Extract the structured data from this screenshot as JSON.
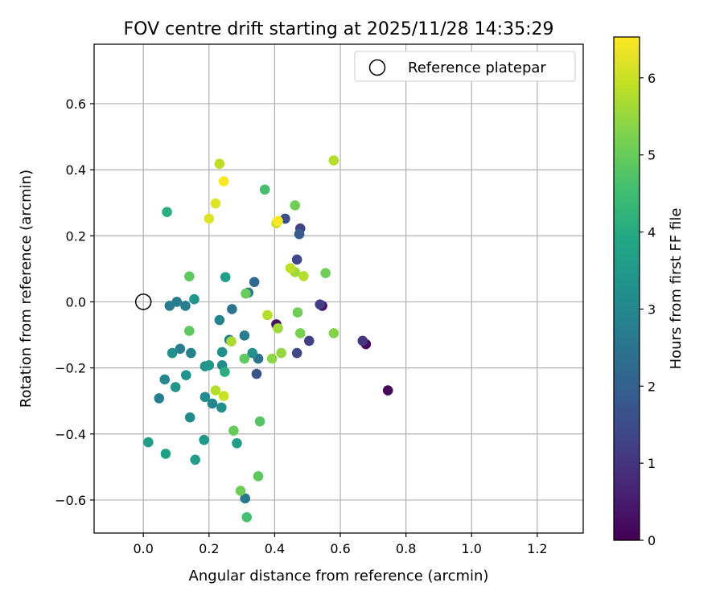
{
  "chart_data": {
    "type": "scatter",
    "title": "FOV centre drift starting at 2025/11/28 14:35:29",
    "xlabel": "Angular distance from reference (arcmin)",
    "ylabel": "Rotation from reference (arcmin)",
    "xlim": [
      -0.15,
      1.34
    ],
    "ylim": [
      -0.7,
      0.78
    ],
    "xticks": [
      0.0,
      0.2,
      0.4,
      0.6,
      0.8,
      1.0,
      1.2
    ],
    "xtick_labels": [
      "0.0",
      "0.2",
      "0.4",
      "0.6",
      "0.8",
      "1.0",
      "1.2"
    ],
    "yticks": [
      -0.6,
      -0.4,
      -0.2,
      0.0,
      0.2,
      0.4,
      0.6
    ],
    "ytick_labels": [
      "−0.6",
      "−0.4",
      "−0.2",
      "0.0",
      "0.2",
      "0.4",
      "0.6"
    ],
    "grid": true,
    "legend": {
      "position": "top-right",
      "label": "Reference platepar"
    },
    "reference_point": {
      "x": 0.0,
      "y": 0.0
    },
    "colorbar": {
      "label": "Hours from first FF file",
      "range": [
        0,
        6.53
      ],
      "ticks": [
        0,
        1,
        2,
        3,
        4,
        5,
        6
      ],
      "tick_labels": [
        "0",
        "1",
        "2",
        "3",
        "4",
        "5",
        "6"
      ],
      "colormap": "viridis"
    },
    "series": [
      {
        "name": "FOV centre drift",
        "points": [
          {
            "x": 0.745,
            "y": -0.268,
            "h": 0.1
          },
          {
            "x": 0.678,
            "y": -0.128,
            "h": 0.2
          },
          {
            "x": 0.545,
            "y": -0.012,
            "h": 0.3
          },
          {
            "x": 0.405,
            "y": -0.068,
            "h": 0.3
          },
          {
            "x": 0.668,
            "y": -0.118,
            "h": 1.0
          },
          {
            "x": 0.538,
            "y": -0.008,
            "h": 1.2
          },
          {
            "x": 0.505,
            "y": -0.118,
            "h": 1.2
          },
          {
            "x": 0.478,
            "y": 0.222,
            "h": 1.3
          },
          {
            "x": 0.468,
            "y": 0.128,
            "h": 1.4
          },
          {
            "x": 0.468,
            "y": -0.155,
            "h": 1.4
          },
          {
            "x": 0.432,
            "y": 0.252,
            "h": 1.6
          },
          {
            "x": 0.345,
            "y": -0.218,
            "h": 1.7
          },
          {
            "x": 0.475,
            "y": 0.205,
            "h": 1.9
          },
          {
            "x": 0.338,
            "y": 0.06,
            "h": 2.2
          },
          {
            "x": 0.35,
            "y": -0.172,
            "h": 2.5
          },
          {
            "x": 0.27,
            "y": -0.022,
            "h": 2.5
          },
          {
            "x": 0.31,
            "y": -0.595,
            "h": 2.6
          },
          {
            "x": 0.32,
            "y": 0.028,
            "h": 2.6
          },
          {
            "x": 0.308,
            "y": -0.102,
            "h": 2.7
          },
          {
            "x": 0.262,
            "y": -0.115,
            "h": 2.7
          },
          {
            "x": 0.102,
            "y": 0.0,
            "h": 2.7
          },
          {
            "x": 0.08,
            "y": -0.012,
            "h": 2.7
          },
          {
            "x": 0.128,
            "y": -0.012,
            "h": 2.8
          },
          {
            "x": 0.232,
            "y": -0.055,
            "h": 2.9
          },
          {
            "x": 0.048,
            "y": -0.292,
            "h": 2.8
          },
          {
            "x": 0.112,
            "y": -0.142,
            "h": 2.8
          },
          {
            "x": 0.145,
            "y": -0.155,
            "h": 2.9
          },
          {
            "x": 0.065,
            "y": -0.235,
            "h": 3.0
          },
          {
            "x": 0.21,
            "y": -0.308,
            "h": 3.0
          },
          {
            "x": 0.188,
            "y": -0.288,
            "h": 3.1
          },
          {
            "x": 0.24,
            "y": -0.192,
            "h": 3.1
          },
          {
            "x": 0.24,
            "y": -0.152,
            "h": 3.2
          },
          {
            "x": 0.238,
            "y": -0.32,
            "h": 3.2
          },
          {
            "x": 0.142,
            "y": -0.35,
            "h": 3.1
          },
          {
            "x": 0.13,
            "y": -0.222,
            "h": 3.3
          },
          {
            "x": 0.088,
            "y": -0.155,
            "h": 3.2
          },
          {
            "x": 0.332,
            "y": -0.155,
            "h": 3.3
          },
          {
            "x": 0.188,
            "y": -0.195,
            "h": 3.3
          },
          {
            "x": 0.2,
            "y": -0.192,
            "h": 3.4
          },
          {
            "x": 0.155,
            "y": 0.008,
            "h": 3.4
          },
          {
            "x": 0.098,
            "y": -0.258,
            "h": 3.4
          },
          {
            "x": 0.185,
            "y": -0.418,
            "h": 3.5
          },
          {
            "x": 0.158,
            "y": -0.478,
            "h": 3.6
          },
          {
            "x": 0.285,
            "y": -0.428,
            "h": 3.6
          },
          {
            "x": 0.015,
            "y": -0.425,
            "h": 3.6
          },
          {
            "x": 0.068,
            "y": -0.46,
            "h": 3.7
          },
          {
            "x": 0.25,
            "y": 0.075,
            "h": 3.7
          },
          {
            "x": 0.248,
            "y": -0.212,
            "h": 4.1
          },
          {
            "x": 0.072,
            "y": 0.272,
            "h": 4.1
          },
          {
            "x": 0.37,
            "y": 0.34,
            "h": 4.6
          },
          {
            "x": 0.315,
            "y": -0.652,
            "h": 4.6
          },
          {
            "x": 0.14,
            "y": 0.077,
            "h": 4.9
          },
          {
            "x": 0.14,
            "y": -0.088,
            "h": 4.9
          },
          {
            "x": 0.308,
            "y": -0.172,
            "h": 4.9
          },
          {
            "x": 0.355,
            "y": -0.362,
            "h": 4.8
          },
          {
            "x": 0.35,
            "y": -0.528,
            "h": 4.9
          },
          {
            "x": 0.312,
            "y": 0.025,
            "h": 5.0
          },
          {
            "x": 0.275,
            "y": -0.39,
            "h": 5.0
          },
          {
            "x": 0.296,
            "y": -0.572,
            "h": 5.1
          },
          {
            "x": 0.462,
            "y": 0.292,
            "h": 5.1
          },
          {
            "x": 0.555,
            "y": 0.087,
            "h": 5.1
          },
          {
            "x": 0.47,
            "y": -0.032,
            "h": 5.1
          },
          {
            "x": 0.478,
            "y": -0.095,
            "h": 5.2
          },
          {
            "x": 0.58,
            "y": -0.095,
            "h": 5.3
          },
          {
            "x": 0.392,
            "y": -0.172,
            "h": 5.4
          },
          {
            "x": 0.42,
            "y": -0.155,
            "h": 5.5
          },
          {
            "x": 0.41,
            "y": -0.08,
            "h": 5.6
          },
          {
            "x": 0.462,
            "y": 0.09,
            "h": 5.6
          },
          {
            "x": 0.268,
            "y": -0.12,
            "h": 5.7
          },
          {
            "x": 0.22,
            "y": -0.268,
            "h": 5.8
          },
          {
            "x": 0.378,
            "y": -0.04,
            "h": 5.8
          },
          {
            "x": 0.488,
            "y": 0.078,
            "h": 5.8
          },
          {
            "x": 0.58,
            "y": 0.428,
            "h": 5.8
          },
          {
            "x": 0.232,
            "y": 0.418,
            "h": 5.9
          },
          {
            "x": 0.448,
            "y": 0.102,
            "h": 5.9
          },
          {
            "x": 0.405,
            "y": 0.238,
            "h": 6.0
          },
          {
            "x": 0.245,
            "y": -0.285,
            "h": 6.0
          },
          {
            "x": 0.22,
            "y": 0.298,
            "h": 6.2
          },
          {
            "x": 0.2,
            "y": 0.252,
            "h": 6.2
          },
          {
            "x": 0.245,
            "y": 0.365,
            "h": 6.5
          },
          {
            "x": 0.41,
            "y": 0.245,
            "h": 6.5
          }
        ]
      }
    ]
  }
}
